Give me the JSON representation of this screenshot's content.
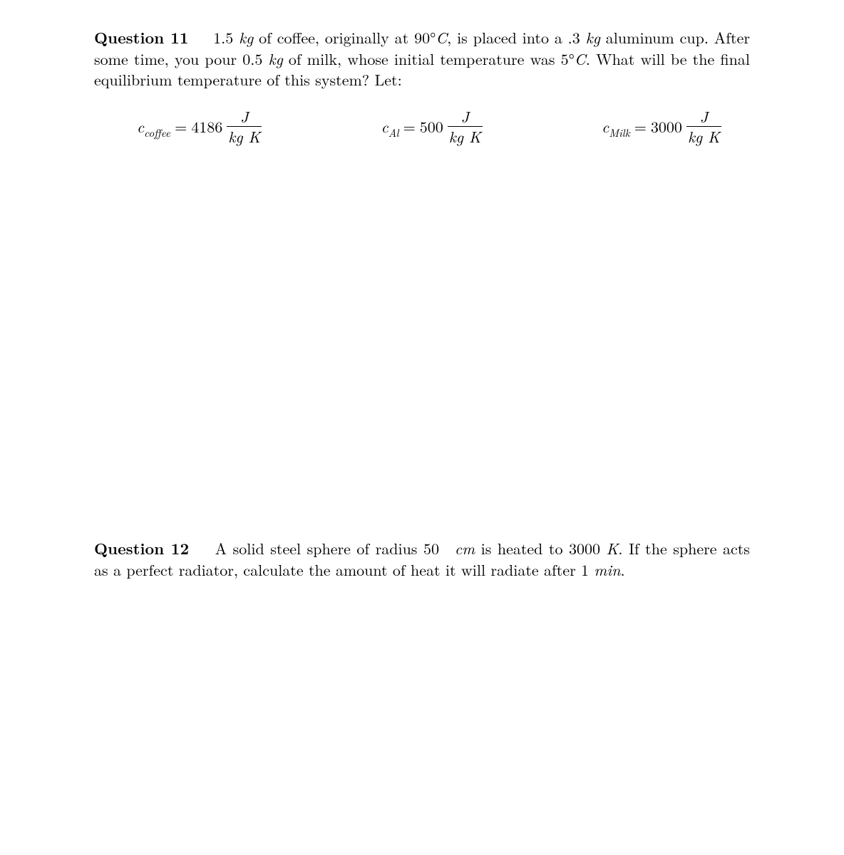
{
  "q11": {
    "label": "Question 11",
    "text1": "1.5 ",
    "unit_kg1": "kg",
    "text2": " of coffee, originally at 90°",
    "unit_C1": "C",
    "text3": ", is placed into a .3 ",
    "unit_kg2": "kg",
    "text4": " aluminum cup. After some time, you pour 0.5 ",
    "unit_kg3": "kg",
    "text5": " of milk, whose initial temperature was 5°",
    "unit_C2": "C",
    "text6": ". What will be the final equilibrium temperature of this system? Let:",
    "eqs": {
      "coffee": {
        "sym": "c",
        "sub": "coffee",
        "eq": " = ",
        "val": "4186",
        "num": "J",
        "den": "kg K"
      },
      "al": {
        "sym": "c",
        "sub": "Al",
        "eq": " = ",
        "val": "500",
        "num": "J",
        "den": "kg K"
      },
      "milk": {
        "sym": "c",
        "sub": "Milk",
        "eq": " = ",
        "val": "3000",
        "num": "J",
        "den": "kg K"
      }
    }
  },
  "q12": {
    "label": "Question 12",
    "text1": "A solid steel sphere of radius 50 ",
    "unit_cm": "cm",
    "text2": " is heated to 3000 ",
    "unit_K": "K",
    "text3": ". If the sphere acts as a perfect radiator, calculate the amount of heat it will radiate after 1 ",
    "unit_min": "min",
    "text4": "."
  }
}
